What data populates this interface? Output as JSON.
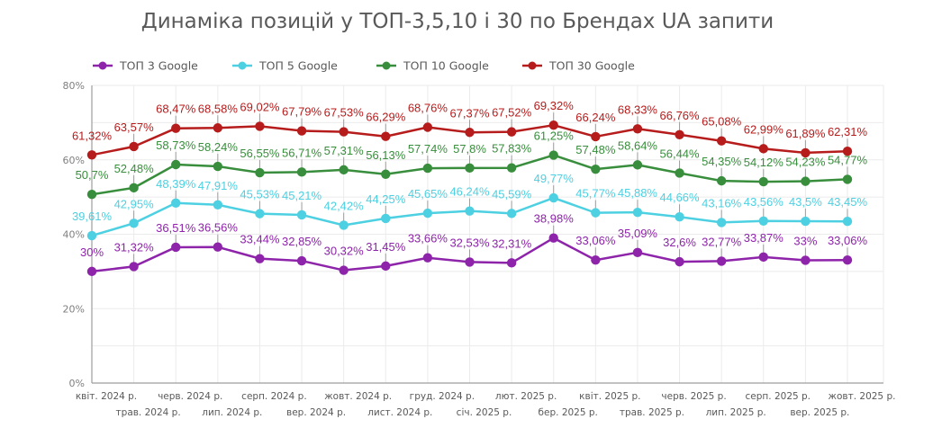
{
  "chart_data": {
    "type": "line",
    "title": "Динаміка позицій у ТОП-3,5,10 і 30 по Брендах UA запити",
    "xlabel": "",
    "ylabel": "",
    "ylim": [
      0,
      80
    ],
    "y_ticks": [
      0,
      20,
      40,
      60,
      80
    ],
    "y_tick_labels": [
      "0%",
      "20%",
      "40%",
      "60%",
      "80%"
    ],
    "y_minor_grid_step": 10,
    "grid": true,
    "legend_position": "top-left",
    "categories": [
      "квіт. 2024 р.",
      "трав. 2024 р.",
      "черв. 2024 р.",
      "лип. 2024 р.",
      "серп. 2024 р.",
      "вер. 2024 р.",
      "жовт. 2024 р.",
      "лист. 2024 р.",
      "груд. 2024 р.",
      "січ. 2025 р.",
      "лют. 2025 р.",
      "бер. 2025 р.",
      "квіт. 2025 р.",
      "трав. 2025 р.",
      "черв. 2025 р.",
      "лип. 2025 р.",
      "серп. 2025 р.",
      "вер. 2025 р.",
      "жовт. 2025 р."
    ],
    "series": [
      {
        "name": "ТОП 3 Google",
        "color": "#8e24aa",
        "values": [
          30,
          31.32,
          36.51,
          36.56,
          33.44,
          32.85,
          30.32,
          31.45,
          33.66,
          32.53,
          32.31,
          38.98,
          33.06,
          35.09,
          32.6,
          32.77,
          33.87,
          33,
          33.06
        ],
        "labels": [
          "30%",
          "31,32%",
          "36,51%",
          "36,56%",
          "33,44%",
          "32,85%",
          "30,32%",
          "31,45%",
          "33,66%",
          "32,53%",
          "32,31%",
          "38,98%",
          "33,06%",
          "35,09%",
          "32,6%",
          "32,77%",
          "33,87%",
          "33%",
          "33,06%"
        ]
      },
      {
        "name": "ТОП 5 Google",
        "color": "#4dd0e1",
        "values": [
          39.61,
          42.95,
          48.39,
          47.91,
          45.53,
          45.21,
          42.42,
          44.25,
          45.65,
          46.24,
          45.59,
          49.77,
          45.77,
          45.88,
          44.66,
          43.16,
          43.56,
          43.5,
          43.45
        ],
        "labels": [
          "39,61%",
          "42,95%",
          "48,39%",
          "47,91%",
          "45,53%",
          "45,21%",
          "42,42%",
          "44,25%",
          "45,65%",
          "46,24%",
          "45,59%",
          "49,77%",
          "45,77%",
          "45,88%",
          "44,66%",
          "43,16%",
          "43,56%",
          "43,5%",
          "43,45%"
        ]
      },
      {
        "name": "ТОП 10 Google",
        "color": "#388e3c",
        "values": [
          50.7,
          52.48,
          58.73,
          58.24,
          56.55,
          56.71,
          57.31,
          56.13,
          57.74,
          57.8,
          57.83,
          61.25,
          57.48,
          58.64,
          56.44,
          54.35,
          54.12,
          54.23,
          54.77
        ],
        "labels": [
          "50,7%",
          "52,48%",
          "58,73%",
          "58,24%",
          "56,55%",
          "56,71%",
          "57,31%",
          "56,13%",
          "57,74%",
          "57,8%",
          "57,83%",
          "61,25%",
          "57,48%",
          "58,64%",
          "56,44%",
          "54,35%",
          "54,12%",
          "54,23%",
          "54,77%"
        ]
      },
      {
        "name": "ТОП 30 Google",
        "color": "#b71c1c",
        "values": [
          61.32,
          63.57,
          68.47,
          68.58,
          69.02,
          67.79,
          67.53,
          66.29,
          68.76,
          67.37,
          67.52,
          69.32,
          66.24,
          68.33,
          66.76,
          65.08,
          62.99,
          61.89,
          62.31
        ],
        "labels": [
          "61,32%",
          "63,57%",
          "68,47%",
          "68,58%",
          "69,02%",
          "67,79%",
          "67,53%",
          "66,29%",
          "68,76%",
          "67,37%",
          "67,52%",
          "69,32%",
          "66,24%",
          "68,33%",
          "66,76%",
          "65,08%",
          "62,99%",
          "61,89%",
          "62,31%"
        ]
      }
    ]
  }
}
